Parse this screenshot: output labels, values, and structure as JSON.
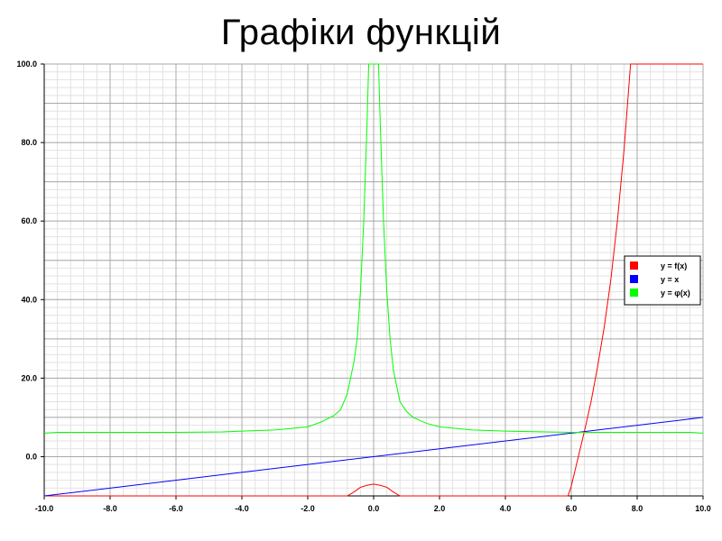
{
  "chart_data": {
    "type": "line",
    "title": "Графіки функцій",
    "xlabel": "",
    "ylabel": "",
    "xlim": [
      -10.0,
      10.0
    ],
    "ylim": [
      -10.0,
      100.0
    ],
    "grid": true,
    "legend_position": "right",
    "x_ticks": [
      "-10.0",
      "-8.0",
      "-6.0",
      "-4.0",
      "-2.0",
      "0.0",
      "2.0",
      "4.0",
      "6.0",
      "8.0",
      "10.0"
    ],
    "y_ticks": [
      "0.0",
      "20.0",
      "40.0",
      "60.0",
      "80.0",
      "100.0"
    ],
    "x_tick_values": [
      -10,
      -8,
      -6,
      -4,
      -2,
      0,
      2,
      4,
      6,
      8,
      10
    ],
    "y_tick_values": [
      0,
      20,
      40,
      60,
      80,
      100
    ],
    "series": [
      {
        "name": "y = f(x)",
        "color": "#ff0000",
        "points": [
          [
            -10,
            -10
          ],
          [
            -0.8,
            -10
          ],
          [
            -0.6,
            -9.0
          ],
          [
            -0.4,
            -7.8
          ],
          [
            -0.2,
            -7.3
          ],
          [
            0,
            -7.0
          ],
          [
            0.2,
            -7.3
          ],
          [
            0.4,
            -7.8
          ],
          [
            0.6,
            -9.0
          ],
          [
            0.8,
            -10
          ],
          [
            5.9,
            -10
          ],
          [
            6.0,
            -7.5
          ],
          [
            6.2,
            -0.5
          ],
          [
            6.4,
            6.5
          ],
          [
            6.6,
            14
          ],
          [
            6.8,
            23
          ],
          [
            7.0,
            33
          ],
          [
            7.2,
            45
          ],
          [
            7.4,
            60
          ],
          [
            7.6,
            78
          ],
          [
            7.8,
            100
          ],
          [
            10,
            100
          ]
        ]
      },
      {
        "name": "y = x",
        "color": "#0000ff",
        "points": [
          [
            -10,
            -10
          ],
          [
            10,
            10
          ]
        ]
      },
      {
        "name": "y = φ(x)",
        "color": "#00ff00",
        "points": [
          [
            -10,
            6.0
          ],
          [
            -9.6,
            6.2
          ],
          [
            -8,
            6.2
          ],
          [
            -6,
            6.2
          ],
          [
            -4.6,
            6.3
          ],
          [
            -4,
            6.5
          ],
          [
            -3,
            6.8
          ],
          [
            -2,
            7.6
          ],
          [
            -1.6,
            8.8
          ],
          [
            -1.2,
            10.5
          ],
          [
            -1.0,
            12
          ],
          [
            -0.8,
            16
          ],
          [
            -0.6,
            24
          ],
          [
            -0.5,
            30
          ],
          [
            -0.4,
            42
          ],
          [
            -0.3,
            60
          ],
          [
            -0.2,
            85
          ],
          [
            -0.15,
            100
          ],
          [
            0.15,
            100
          ],
          [
            0.2,
            85
          ],
          [
            0.3,
            60
          ],
          [
            0.4,
            42
          ],
          [
            0.5,
            30
          ],
          [
            0.6,
            22
          ],
          [
            0.8,
            14
          ],
          [
            1.0,
            11.5
          ],
          [
            1.2,
            10
          ],
          [
            1.6,
            8.5
          ],
          [
            2,
            7.6
          ],
          [
            3,
            6.8
          ],
          [
            4,
            6.5
          ],
          [
            6,
            6.2
          ],
          [
            8,
            6.2
          ],
          [
            9.6,
            6.2
          ],
          [
            10,
            6.0
          ]
        ]
      }
    ]
  }
}
